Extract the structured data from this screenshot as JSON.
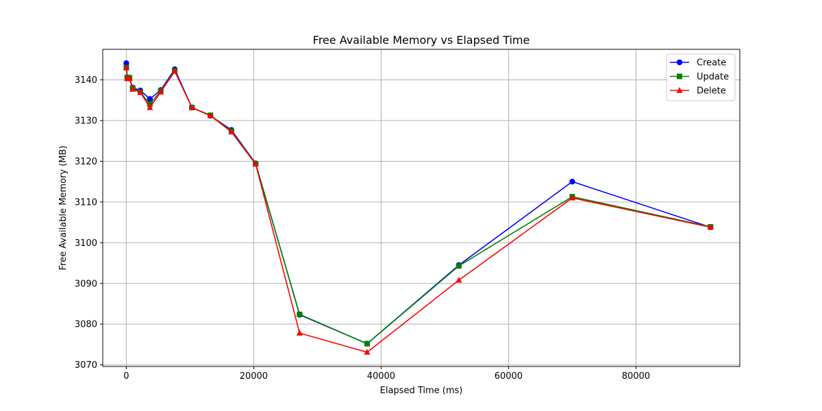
{
  "chart_data": {
    "type": "line",
    "title": "Free Available Memory vs Elapsed Time",
    "xlabel": "Elapsed Time (ms)",
    "ylabel": "Free Available Memory (MB)",
    "xlim": [
      -3700,
      96300
    ],
    "ylim": [
      3069.6,
      3147.5
    ],
    "xticks": [
      0,
      20000,
      40000,
      60000,
      80000
    ],
    "yticks": [
      3070,
      3080,
      3090,
      3100,
      3110,
      3120,
      3130,
      3140
    ],
    "grid": true,
    "legend_position": "top-right",
    "series": [
      {
        "name": "Create",
        "color": "#0000ff",
        "marker": "circle",
        "points": [
          [
            0,
            3144.1
          ],
          [
            150,
            3140.5
          ],
          [
            500,
            3140.4
          ],
          [
            1000,
            3138.1
          ],
          [
            2200,
            3137.4
          ],
          [
            3700,
            3135.3
          ],
          [
            5400,
            3137.5
          ],
          [
            7600,
            3142.6
          ],
          [
            10300,
            3133.2
          ],
          [
            13200,
            3131.2
          ],
          [
            16500,
            3127.7
          ],
          [
            20300,
            3119.5
          ],
          [
            27200,
            3082.3
          ],
          [
            37800,
            3075.2
          ],
          [
            52200,
            3094.5
          ],
          [
            70000,
            3115.0
          ],
          [
            91700,
            3103.8
          ]
        ]
      },
      {
        "name": "Update",
        "color": "#008000",
        "marker": "square",
        "points": [
          [
            0,
            3143.0
          ],
          [
            150,
            3140.6
          ],
          [
            500,
            3140.5
          ],
          [
            1000,
            3138.0
          ],
          [
            2200,
            3137.0
          ],
          [
            3700,
            3134.0
          ],
          [
            5400,
            3137.3
          ],
          [
            7600,
            3142.2
          ],
          [
            10300,
            3133.2
          ],
          [
            13200,
            3131.3
          ],
          [
            16500,
            3127.4
          ],
          [
            20300,
            3119.4
          ],
          [
            27200,
            3082.4
          ],
          [
            37800,
            3075.2
          ],
          [
            52200,
            3094.3
          ],
          [
            70000,
            3111.3
          ],
          [
            91700,
            3103.9
          ]
        ]
      },
      {
        "name": "Delete",
        "color": "#ff0000",
        "marker": "triangle",
        "points": [
          [
            0,
            3143.0
          ],
          [
            150,
            3140.3
          ],
          [
            500,
            3140.3
          ],
          [
            1000,
            3137.7
          ],
          [
            2200,
            3136.9
          ],
          [
            3700,
            3133.2
          ],
          [
            5400,
            3137.0
          ],
          [
            7600,
            3142.1
          ],
          [
            10300,
            3133.2
          ],
          [
            13200,
            3131.2
          ],
          [
            16500,
            3127.2
          ],
          [
            20300,
            3119.3
          ],
          [
            27200,
            3077.8
          ],
          [
            37800,
            3073.1
          ],
          [
            52200,
            3090.8
          ],
          [
            70000,
            3111.0
          ],
          [
            91700,
            3103.8
          ]
        ]
      }
    ]
  }
}
